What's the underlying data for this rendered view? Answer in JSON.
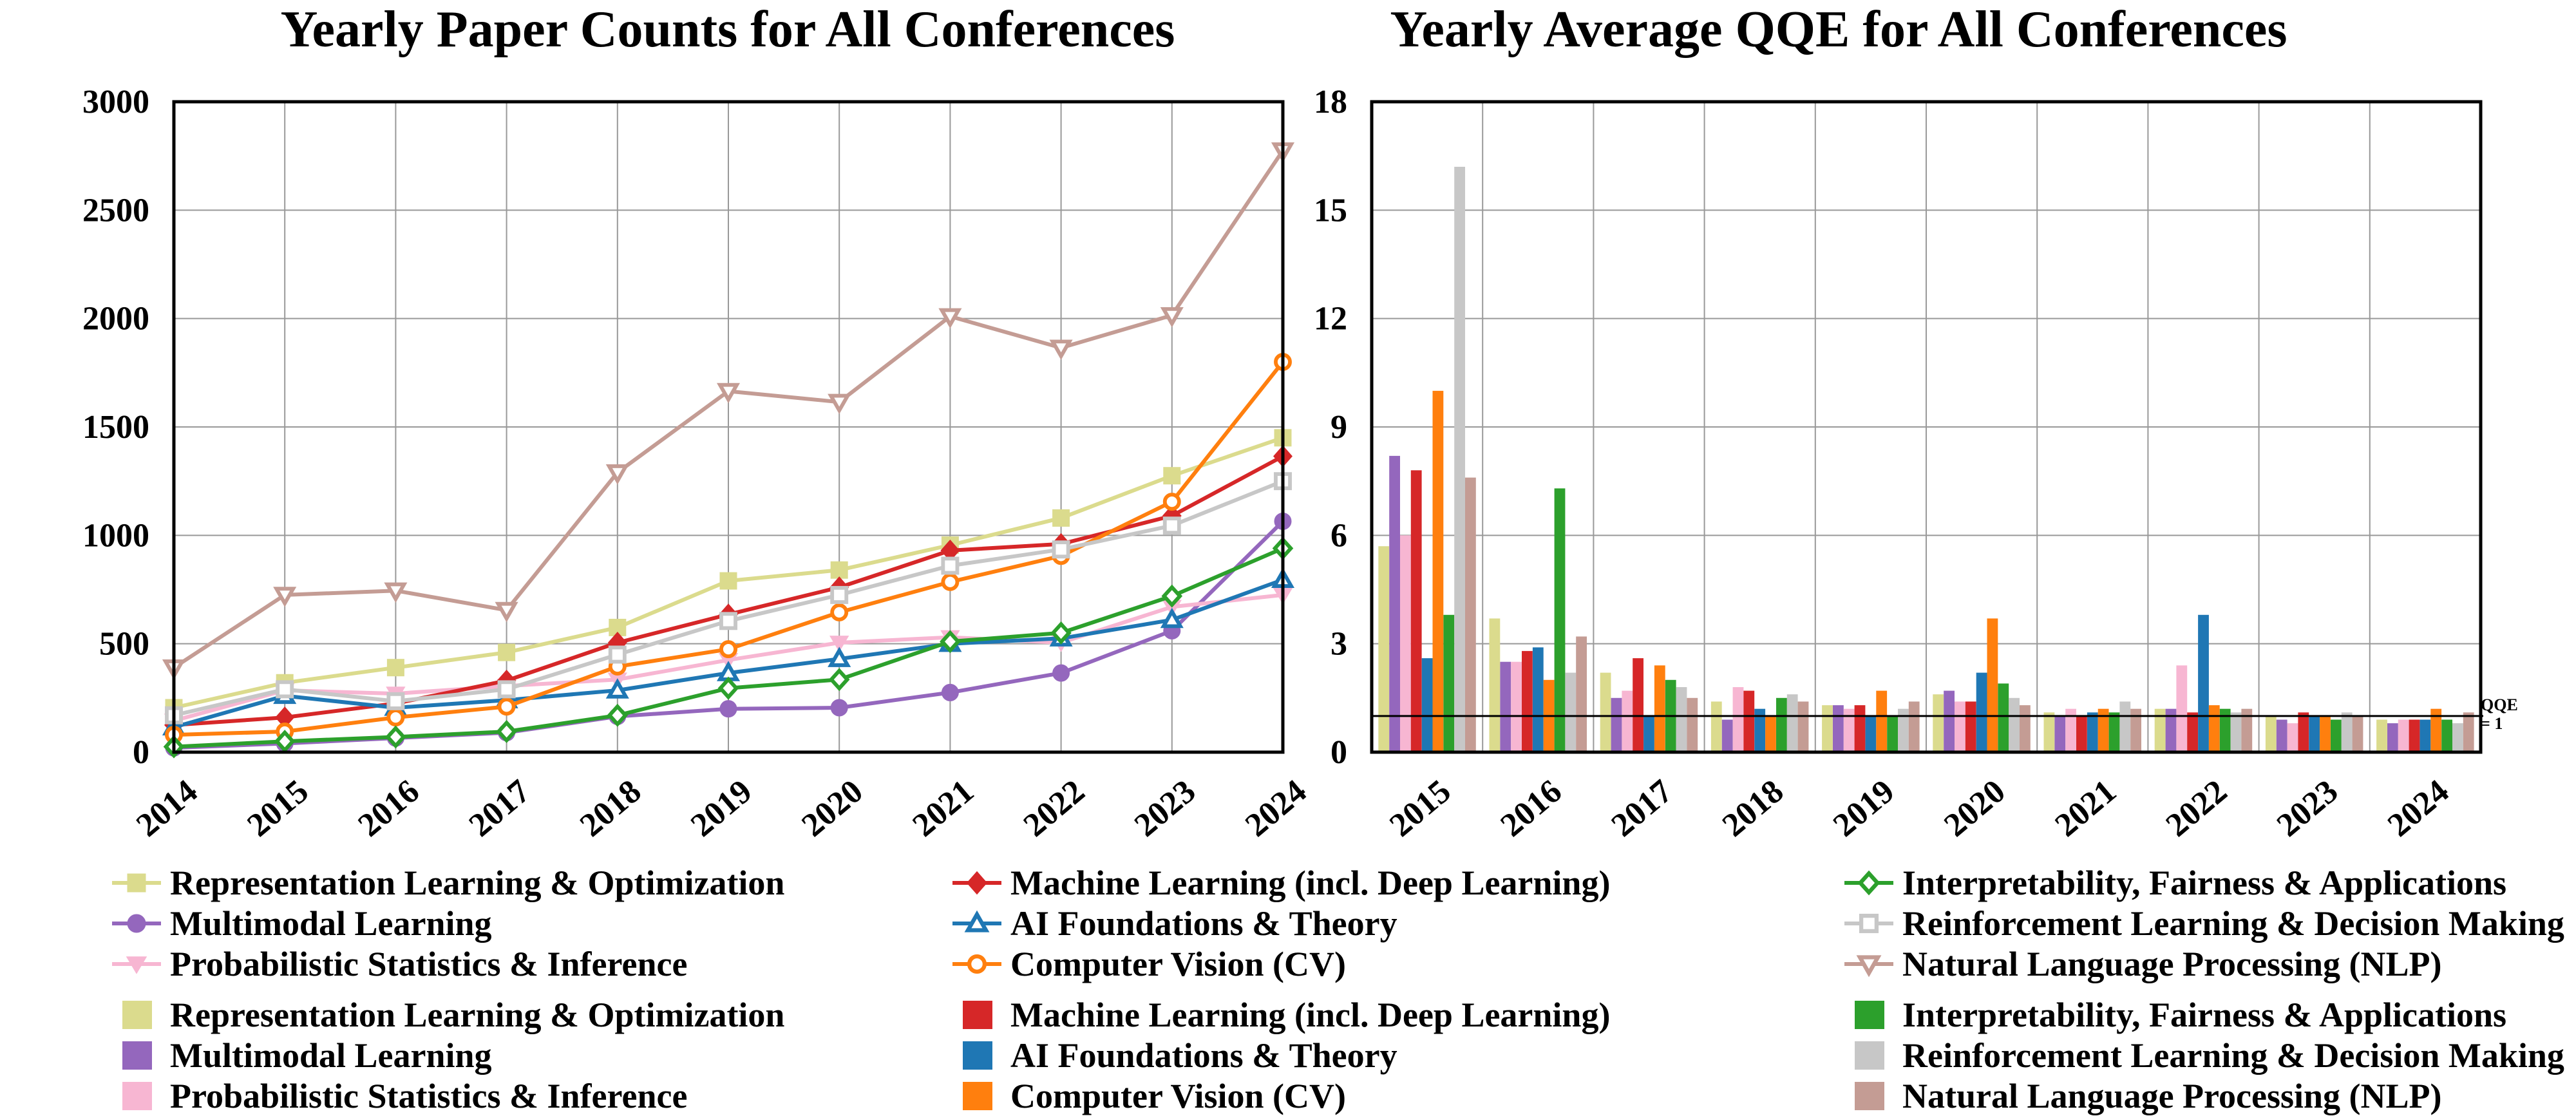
{
  "colors": {
    "Representation Learning & Optimization": "#dbdb8d",
    "Multimodal Learning": "#9467bd",
    "Probabilistic Statistics & Inference": "#f7b6d2",
    "Machine Learning (incl. Deep Learning)": "#d62728",
    "AI Foundations & Theory": "#1f77b4",
    "Computer Vision (CV)": "#ff7f0e",
    "Interpretability, Fairness & Applications": "#2ca02c",
    "Reinforcement Learning & Decision Making": "#c7c7c7",
    "Natural Language Processing (NLP)": "#c49c94"
  },
  "legend": {
    "line_items": [
      {
        "label": "Representation Learning & Optimization",
        "marker": "square"
      },
      {
        "label": "Multimodal Learning",
        "marker": "circle"
      },
      {
        "label": "Probabilistic Statistics & Inference",
        "marker": "triangle-down-filled"
      },
      {
        "label": "Machine Learning (incl. Deep Learning)",
        "marker": "diamond"
      },
      {
        "label": "AI Foundations & Theory",
        "marker": "triangle-up-open"
      },
      {
        "label": "Computer Vision (CV)",
        "marker": "circle-open"
      },
      {
        "label": "Interpretability, Fairness & Applications",
        "marker": "diamond-open"
      },
      {
        "label": "Reinforcement Learning & Decision Making",
        "marker": "square-open"
      },
      {
        "label": "Natural Language Processing (NLP)",
        "marker": "triangle-down-open"
      }
    ],
    "bar_items": [
      {
        "label": "Representation Learning & Optimization"
      },
      {
        "label": "Multimodal Learning"
      },
      {
        "label": "Probabilistic Statistics & Inference"
      },
      {
        "label": "Machine Learning (incl. Deep Learning)"
      },
      {
        "label": "AI Foundations & Theory"
      },
      {
        "label": "Computer Vision (CV)"
      },
      {
        "label": "Interpretability, Fairness & Applications"
      },
      {
        "label": "Reinforcement Learning & Decision Making"
      },
      {
        "label": "Natural Language Processing (NLP)"
      }
    ]
  },
  "chart_data": [
    {
      "type": "line",
      "title": "Yearly Paper Counts for All Conferences",
      "x": [
        "2014",
        "2015",
        "2016",
        "2017",
        "2018",
        "2019",
        "2020",
        "2021",
        "2022",
        "2023",
        "2024"
      ],
      "ylim": [
        0,
        3000
      ],
      "yticks": [
        0,
        500,
        1000,
        1500,
        2000,
        2500,
        3000
      ],
      "grid": true,
      "series": [
        {
          "name": "Representation Learning & Optimization",
          "marker": "square",
          "values": [
            205,
            320,
            390,
            460,
            575,
            790,
            840,
            955,
            1080,
            1275,
            1450
          ]
        },
        {
          "name": "Multimodal Learning",
          "marker": "circle",
          "values": [
            20,
            40,
            65,
            90,
            165,
            200,
            205,
            275,
            365,
            560,
            1065
          ]
        },
        {
          "name": "Probabilistic Statistics & Inference",
          "marker": "triangle-down-filled",
          "values": [
            145,
            285,
            270,
            305,
            335,
            425,
            505,
            530,
            505,
            670,
            725
          ]
        },
        {
          "name": "Machine Learning (incl. Deep Learning)",
          "marker": "diamond",
          "values": [
            125,
            160,
            225,
            330,
            505,
            635,
            760,
            930,
            960,
            1090,
            1365
          ]
        },
        {
          "name": "AI Foundations & Theory",
          "marker": "triangle-up-open",
          "values": [
            115,
            260,
            205,
            240,
            285,
            365,
            430,
            500,
            525,
            610,
            795
          ]
        },
        {
          "name": "Computer Vision (CV)",
          "marker": "circle-open",
          "values": [
            80,
            95,
            160,
            210,
            395,
            475,
            645,
            785,
            905,
            1155,
            1800
          ]
        },
        {
          "name": "Interpretability, Fairness & Applications",
          "marker": "diamond-open",
          "values": [
            25,
            50,
            70,
            95,
            170,
            295,
            335,
            510,
            550,
            720,
            940
          ]
        },
        {
          "name": "Reinforcement Learning & Decision Making",
          "marker": "square-open",
          "values": [
            170,
            290,
            235,
            290,
            450,
            605,
            725,
            860,
            935,
            1045,
            1250
          ]
        },
        {
          "name": "Natural Language Processing (NLP)",
          "marker": "triangle-down-open",
          "values": [
            390,
            725,
            745,
            655,
            1290,
            1665,
            1615,
            2010,
            1865,
            2015,
            2775
          ]
        }
      ]
    },
    {
      "type": "bar",
      "title": "Yearly Average QQE for All Conferences",
      "categories": [
        "2015",
        "2016",
        "2017",
        "2018",
        "2019",
        "2020",
        "2021",
        "2022",
        "2023",
        "2024"
      ],
      "ylim": [
        0,
        18
      ],
      "yticks": [
        0,
        3,
        6,
        9,
        12,
        15,
        18
      ],
      "grid": true,
      "reference_line": {
        "value": 1,
        "label_line1": "QQE",
        "label_line2": "= 1"
      },
      "series": [
        {
          "name": "Representation Learning & Optimization",
          "values": [
            5.7,
            3.7,
            2.2,
            1.4,
            1.3,
            1.6,
            1.1,
            1.2,
            1.0,
            0.9
          ]
        },
        {
          "name": "Multimodal Learning",
          "values": [
            8.2,
            2.5,
            1.5,
            0.9,
            1.3,
            1.7,
            1.0,
            1.2,
            0.9,
            0.8
          ]
        },
        {
          "name": "Probabilistic Statistics & Inference",
          "values": [
            6.0,
            2.5,
            1.7,
            1.8,
            1.2,
            1.4,
            1.2,
            2.4,
            0.8,
            0.9
          ]
        },
        {
          "name": "Machine Learning (incl. Deep Learning)",
          "values": [
            7.8,
            2.8,
            2.6,
            1.7,
            1.3,
            1.4,
            1.0,
            1.1,
            1.1,
            0.9
          ]
        },
        {
          "name": "AI Foundations & Theory",
          "values": [
            2.6,
            2.9,
            1.0,
            1.2,
            1.0,
            2.2,
            1.1,
            3.8,
            1.0,
            0.9
          ]
        },
        {
          "name": "Computer Vision (CV)",
          "values": [
            10.0,
            2.0,
            2.4,
            1.0,
            1.7,
            3.7,
            1.2,
            1.3,
            1.0,
            1.2
          ]
        },
        {
          "name": "Interpretability, Fairness & Applications",
          "values": [
            3.8,
            7.3,
            2.0,
            1.5,
            1.0,
            1.9,
            1.1,
            1.2,
            0.9,
            0.9
          ]
        },
        {
          "name": "Reinforcement Learning & Decision Making",
          "values": [
            16.2,
            2.2,
            1.8,
            1.6,
            1.2,
            1.5,
            1.4,
            1.1,
            1.1,
            0.8
          ]
        },
        {
          "name": "Natural Language Processing (NLP)",
          "values": [
            7.6,
            3.2,
            1.5,
            1.4,
            1.4,
            1.3,
            1.2,
            1.2,
            1.0,
            1.1
          ]
        }
      ]
    }
  ]
}
